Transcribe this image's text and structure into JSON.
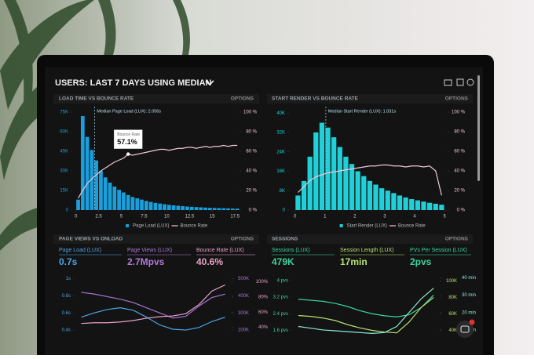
{
  "header": {
    "title": "USERS: LAST 7 DAYS USING MEDIAN"
  },
  "panels": [
    {
      "title": "LOAD TIME VS BOUNCE RATE",
      "options": "OPTIONS"
    },
    {
      "title": "START RENDER VS BOUNCE RATE",
      "options": "OPTIONS"
    },
    {
      "title": "PAGE VIEWS VS ONLOAD",
      "options": "OPTIONS",
      "stats": [
        {
          "label": "Page Load (LUX)",
          "value": "0.7s"
        },
        {
          "label": "Page Views (LUX)",
          "value": "2.7Mpvs"
        },
        {
          "label": "Bounce Rate (LUX)",
          "value": "40.6%"
        }
      ]
    },
    {
      "title": "SESSIONS",
      "options": "OPTIONS",
      "stats": [
        {
          "label": "Sessions (LUX)",
          "value": "479K"
        },
        {
          "label": "Session Length (LUX)",
          "value": "17min"
        },
        {
          "label": "PVs Per Session (LUX)",
          "value": "2pvs"
        }
      ]
    }
  ],
  "chart_data": [
    {
      "type": "bar",
      "x": [
        0.25,
        0.75,
        1.25,
        1.75,
        2.25,
        2.75,
        3.25,
        3.75,
        4.25,
        4.75,
        5.25,
        5.75,
        6.25,
        6.75,
        7.25,
        7.75,
        8.25,
        8.75,
        9.25,
        9.75,
        10.25,
        10.75,
        11.25,
        11.75,
        12.25,
        12.75,
        13.25,
        13.75,
        14.25,
        14.75,
        15.25,
        15.75,
        16.25,
        16.75,
        17.25,
        17.75
      ],
      "xlim": [
        -0.4,
        18
      ],
      "xticks": [
        0,
        2.5,
        5,
        7.5,
        10,
        12.5,
        15,
        17.5
      ],
      "ylim": [
        0,
        78000
      ],
      "yticks": [
        0,
        {
          "value": 15000,
          "label": "15K"
        },
        {
          "value": 30000,
          "label": "30K"
        },
        {
          "value": 45000,
          "label": "45K"
        },
        {
          "value": 60000,
          "label": "60K"
        },
        {
          "value": 75000,
          "label": "75K"
        }
      ],
      "y2lim": [
        0,
        104
      ],
      "y2ticks": [
        {
          "value": 0,
          "label": "0 %"
        },
        {
          "value": 20,
          "label": "20 %"
        },
        {
          "value": 40,
          "label": "40 %"
        },
        {
          "value": 60,
          "label": "60 %"
        },
        {
          "value": 80,
          "label": "80 %"
        },
        {
          "value": 100,
          "label": "100 %"
        }
      ],
      "series": [
        {
          "name": "Page Load (LUX)",
          "color": "#1a9fdc",
          "values": [
            8000,
            72000,
            56000,
            46000,
            38000,
            30000,
            25000,
            21000,
            18000,
            15500,
            13500,
            11500,
            10000,
            9000,
            8000,
            7000,
            6200,
            5500,
            5000,
            4500,
            4000,
            3600,
            3300,
            3000,
            2700,
            2500,
            2300,
            2100,
            1900,
            1700,
            1600,
            1500,
            1400,
            1300,
            1200,
            1100
          ]
        },
        {
          "name": "Bounce Rate",
          "type": "line",
          "axis": "y2",
          "color": "#f2c6d8",
          "values": [
            12,
            20,
            27,
            32,
            36,
            40,
            43,
            46,
            49,
            51,
            53,
            57.1,
            56,
            57,
            58,
            59,
            60,
            61,
            62,
            62,
            61,
            62,
            63,
            63,
            64,
            64,
            63,
            64,
            65,
            64,
            65,
            65,
            66,
            65,
            66,
            66
          ]
        }
      ],
      "median": 2.056,
      "annotation": "Median Page Load (LUX): 2.056s",
      "tooltip": {
        "title": "Bounce Rate",
        "value": 57.1,
        "label": "57.1%"
      }
    },
    {
      "type": "bar",
      "x": [
        0.1,
        0.3,
        0.5,
        0.7,
        0.9,
        1.1,
        1.3,
        1.5,
        1.7,
        1.9,
        2.1,
        2.3,
        2.5,
        2.7,
        2.9,
        3.1,
        3.3,
        3.5,
        3.7,
        3.9,
        4.1,
        4.3,
        4.5,
        4.7,
        4.9
      ],
      "xlim": [
        -0.2,
        5.1
      ],
      "xticks": [
        0,
        1,
        2,
        3,
        4,
        5
      ],
      "ylim": [
        0,
        42000
      ],
      "yticks": [
        0,
        {
          "value": 8000,
          "label": "8K"
        },
        {
          "value": 16000,
          "label": "16K"
        },
        {
          "value": 24000,
          "label": "24K"
        },
        {
          "value": 32000,
          "label": "32K"
        },
        {
          "value": 40000,
          "label": "40K"
        }
      ],
      "y2lim": [
        0,
        104
      ],
      "y2ticks": [
        {
          "value": 0,
          "label": "0 %"
        },
        {
          "value": 20,
          "label": "20 %"
        },
        {
          "value": 40,
          "label": "40 %"
        },
        {
          "value": 60,
          "label": "60 %"
        },
        {
          "value": 80,
          "label": "80 %"
        },
        {
          "value": 100,
          "label": "100 %"
        }
      ],
      "series": [
        {
          "name": "Start Render (LUX)",
          "color": "#1fd0d8",
          "values": [
            6000,
            12000,
            22000,
            32000,
            36000,
            34000,
            30000,
            26000,
            22000,
            19000,
            16000,
            14000,
            12000,
            10500,
            9000,
            8000,
            7000,
            6000,
            5200,
            4500,
            4000,
            3500,
            3000,
            2600,
            2200
          ]
        },
        {
          "name": "Bounce Rate",
          "type": "line",
          "axis": "y2",
          "color": "#f2c6d8",
          "values": [
            18,
            24,
            30,
            34,
            36,
            38,
            39,
            40,
            41,
            42,
            43,
            44,
            45,
            45,
            46,
            46,
            45,
            45,
            44,
            45,
            45,
            44,
            45,
            40,
            15
          ]
        }
      ],
      "median": 1.031,
      "annotation": "Median Start Render (LUX): 1.031s"
    },
    {
      "type": "line",
      "categories": [
        null,
        null,
        null,
        null,
        null,
        null,
        null,
        null,
        null,
        null,
        null,
        null
      ],
      "ylim": [
        0.3,
        1.05
      ],
      "yticks": [
        {
          "value": 0.4,
          "label": "0.4s"
        },
        {
          "value": 0.6,
          "label": "0.6s"
        },
        {
          "value": 0.8,
          "label": "0.8s"
        },
        {
          "value": 1,
          "label": "1s"
        }
      ],
      "y2lim": [
        150000,
        525000
      ],
      "y2ticks": [
        {
          "value": 200000,
          "label": "200K"
        },
        {
          "value": 300000,
          "label": "300K"
        },
        {
          "value": 400000,
          "label": "400K"
        },
        {
          "value": 500000,
          "label": "500K"
        }
      ],
      "y3lim": [
        25,
        110
      ],
      "y3ticks": [
        {
          "value": 40,
          "label": "40%"
        },
        {
          "value": 60,
          "label": "60%"
        },
        {
          "value": 80,
          "label": "80%"
        },
        {
          "value": 100,
          "label": "100%"
        }
      ],
      "series": [
        {
          "color": "#4aa6e6",
          "values": [
            0.55,
            0.6,
            0.64,
            0.66,
            0.63,
            0.55,
            0.46,
            0.41,
            0.4,
            0.43,
            0.5,
            0.55
          ]
        },
        {
          "color": "#a872d6",
          "axis": "y2",
          "values": [
            420000,
            410000,
            395000,
            380000,
            360000,
            330000,
            300000,
            270000,
            280000,
            340000,
            390000,
            410000
          ]
        },
        {
          "color": "#eaa2c8",
          "axis": "y3",
          "values": [
            45,
            46,
            46,
            47,
            49,
            52,
            54,
            55,
            58,
            70,
            88,
            96
          ]
        }
      ]
    },
    {
      "type": "line",
      "categories": [
        null,
        null,
        null,
        null,
        null,
        null,
        null,
        null,
        null,
        null,
        null,
        null
      ],
      "ylim": [
        1.2,
        4.3
      ],
      "yticks": [
        {
          "value": 1.6,
          "label": "1.6 pvs"
        },
        {
          "value": 2.4,
          "label": "2.4 pvs"
        },
        {
          "value": 3.2,
          "label": "3.2 pvs"
        },
        {
          "value": 4,
          "label": "4 pvs"
        }
      ],
      "y2lim": [
        30000,
        108000
      ],
      "y2ticks": [
        {
          "value": 40000,
          "label": "40K"
        },
        {
          "value": 60000,
          "label": "60K"
        },
        {
          "value": 80000,
          "label": "80K"
        },
        {
          "value": 100000,
          "label": "100K"
        }
      ],
      "y3lim": [
        5,
        42
      ],
      "y3ticks": [
        {
          "value": 10,
          "label": "10 min"
        },
        {
          "value": 20,
          "label": "20 min"
        },
        {
          "value": 30,
          "label": "30 min"
        },
        {
          "value": 40,
          "label": "40 min"
        }
      ],
      "series": [
        {
          "color": "#3ad69e",
          "values": [
            3.1,
            3.05,
            3.0,
            2.9,
            2.75,
            2.55,
            2.4,
            2.3,
            2.25,
            2.35,
            2.7,
            3.3
          ]
        },
        {
          "color": "#b8e070",
          "axis": "y2",
          "values": [
            58000,
            57000,
            55000,
            52000,
            47000,
            43000,
            40000,
            38000,
            37000,
            50000,
            68000,
            80000
          ]
        },
        {
          "color": "#8fe6d6",
          "axis": "y3",
          "values": [
            12,
            11,
            10,
            9.5,
            9,
            8.5,
            8,
            8.5,
            12,
            20,
            28,
            34
          ]
        }
      ]
    }
  ]
}
